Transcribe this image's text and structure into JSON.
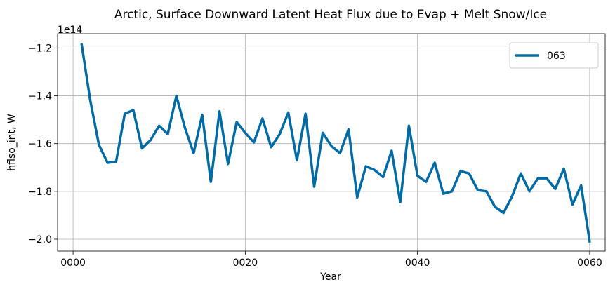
{
  "chart_data": {
    "type": "line",
    "title": "Arctic, Surface Downward Latent Heat Flux due to Evap + Melt Snow/Ice",
    "xlabel": "Year",
    "ylabel": "hflso_int, W",
    "offset_text": "1e14",
    "xlim": [
      -1.8,
      61.8
    ],
    "ylim": [
      -2.05,
      -1.14
    ],
    "x_ticks": [
      0,
      20,
      40,
      60
    ],
    "x_tick_labels": [
      "0000",
      "0020",
      "0040",
      "0060"
    ],
    "y_ticks": [
      -2.0,
      -1.8,
      -1.6,
      -1.4,
      -1.2
    ],
    "y_tick_labels": [
      "−2.0",
      "−1.8",
      "−1.6",
      "−1.4",
      "−1.2"
    ],
    "grid": true,
    "legend_position": "top-right",
    "series": [
      {
        "name": "063",
        "color": "#006ba4",
        "x": [
          1,
          2,
          3,
          4,
          5,
          6,
          7,
          8,
          9,
          10,
          11,
          12,
          13,
          14,
          15,
          16,
          17,
          18,
          19,
          20,
          21,
          22,
          23,
          24,
          25,
          26,
          27,
          28,
          29,
          30,
          31,
          32,
          33,
          34,
          35,
          36,
          37,
          38,
          39,
          40,
          41,
          42,
          43,
          44,
          45,
          46,
          47,
          48,
          49,
          50,
          51,
          52,
          53,
          54,
          55,
          56,
          57,
          58,
          59,
          60
        ],
        "values": [
          -1.185,
          -1.42,
          -1.605,
          -1.68,
          -1.675,
          -1.475,
          -1.46,
          -1.62,
          -1.585,
          -1.525,
          -1.56,
          -1.4,
          -1.535,
          -1.64,
          -1.48,
          -1.76,
          -1.465,
          -1.685,
          -1.51,
          -1.555,
          -1.595,
          -1.495,
          -1.615,
          -1.56,
          -1.47,
          -1.67,
          -1.475,
          -1.78,
          -1.555,
          -1.61,
          -1.64,
          -1.54,
          -1.825,
          -1.695,
          -1.71,
          -1.74,
          -1.63,
          -1.845,
          -1.525,
          -1.735,
          -1.76,
          -1.68,
          -1.81,
          -1.8,
          -1.715,
          -1.725,
          -1.795,
          -1.8,
          -1.865,
          -1.89,
          -1.82,
          -1.725,
          -1.8,
          -1.745,
          -1.745,
          -1.79,
          -1.705,
          -1.855,
          -1.775,
          -2.01
        ]
      }
    ]
  }
}
